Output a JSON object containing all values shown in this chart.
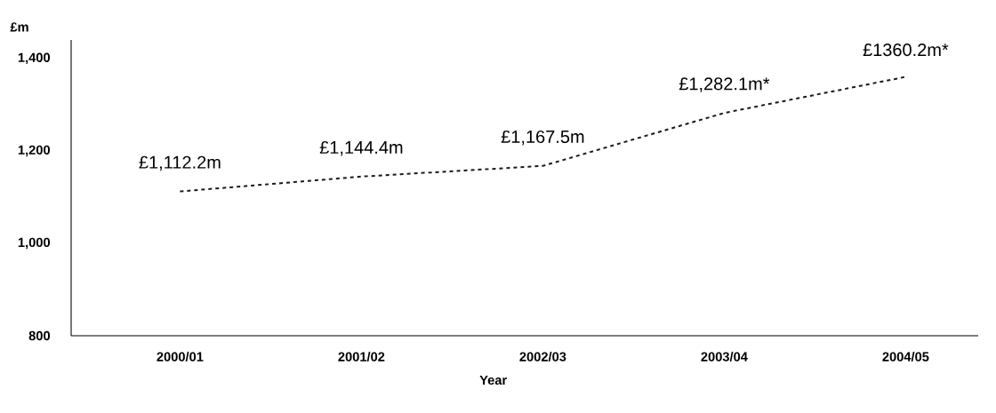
{
  "chart_data": {
    "type": "line",
    "xlabel": "Year",
    "ylabel": "£m",
    "categories": [
      "2000/01",
      "2001/02",
      "2002/03",
      "2003/04",
      "2004/05"
    ],
    "values": [
      1112.2,
      1144.4,
      1167.5,
      1282.1,
      1360.2
    ],
    "value_labels": [
      "£1,112.2m",
      "£1,144.4m",
      "£1,167.5m",
      "£1,282.1m*",
      "£1360.2m*"
    ],
    "color": "#1a1a1a",
    "line_style": "dashed",
    "marker": "none",
    "ylim": [
      800,
      1440
    ],
    "yticks": [
      {
        "value": 800,
        "label": "800"
      },
      {
        "value": 1000,
        "label": "1,000"
      },
      {
        "value": 1200,
        "label": "1,200"
      },
      {
        "value": 1400,
        "label": "1,400"
      }
    ]
  }
}
